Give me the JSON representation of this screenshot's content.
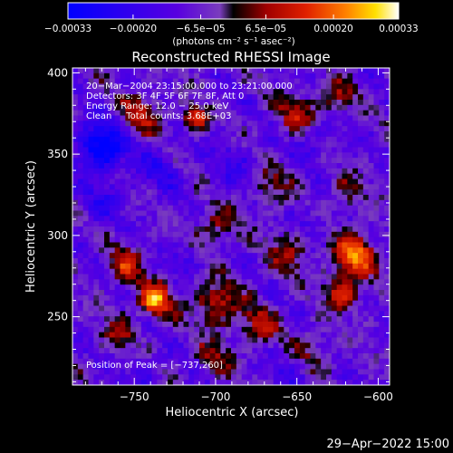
{
  "chart_data": {
    "type": "heatmap",
    "title": "Reconstructed RHESSI Image",
    "xlabel": "Heliocentric X (arcsec)",
    "ylabel": "Heliocentric Y (arcsec)",
    "xlim": [
      -788,
      -593
    ],
    "ylim": [
      208,
      403
    ],
    "xticks": [
      -750,
      -700,
      -650,
      -600
    ],
    "xtick_labels": [
      "−750",
      "−700",
      "−650",
      "−600"
    ],
    "yticks": [
      250,
      300,
      350,
      400
    ],
    "ytick_labels": [
      "250",
      "300",
      "350",
      "400"
    ],
    "colorbar": {
      "range": [
        -0.00033,
        0.00033
      ],
      "ticks": [
        -0.00033,
        -0.0002,
        -6.5e-05,
        6.5e-05,
        0.0002,
        0.00033
      ],
      "tick_labels": [
        "−0.00033",
        "−0.00020",
        "−6.5e−05",
        "6.5e−05",
        "0.00020",
        "0.00033"
      ],
      "unit_label": "(photons cm⁻² s⁻¹ asec⁻²)"
    },
    "annotations": [
      "20−Mar−2004 23:15:00.000 to 23:21:00.000",
      "Detectors: 3F 4F 5F 6F 7F 8F, Att 0",
      "Energy Range: 12.0 − 25.0 keV",
      "Clean     Total counts: 3.68E+03",
      "Position of Peak = [−737,260]"
    ],
    "peak": [
      -737,
      260
    ],
    "sources": [
      {
        "x": -737,
        "y": 260,
        "peak": 0.00033,
        "sigma": 7
      },
      {
        "x": -712,
        "y": 372,
        "peak": 0.00028,
        "sigma": 5
      },
      {
        "x": -615,
        "y": 288,
        "peak": 0.0003,
        "sigma": 9
      },
      {
        "x": -622,
        "y": 265,
        "peak": 0.00024,
        "sigma": 7
      },
      {
        "x": -700,
        "y": 258,
        "peak": 0.00019,
        "sigma": 10
      },
      {
        "x": -673,
        "y": 245,
        "peak": 0.00017,
        "sigma": 8
      },
      {
        "x": -755,
        "y": 282,
        "peak": 0.00018,
        "sigma": 8
      },
      {
        "x": -760,
        "y": 240,
        "peak": 0.00015,
        "sigma": 7
      },
      {
        "x": -655,
        "y": 290,
        "peak": 0.00014,
        "sigma": 9
      },
      {
        "x": -700,
        "y": 305,
        "peak": 0.00014,
        "sigma": 8
      },
      {
        "x": -745,
        "y": 375,
        "peak": 0.00016,
        "sigma": 9
      },
      {
        "x": -650,
        "y": 375,
        "peak": 0.00017,
        "sigma": 8
      },
      {
        "x": -625,
        "y": 385,
        "peak": 0.00015,
        "sigma": 7
      },
      {
        "x": -665,
        "y": 330,
        "peak": 0.00012,
        "sigma": 8
      },
      {
        "x": -620,
        "y": 325,
        "peak": 0.00011,
        "sigma": 8
      },
      {
        "x": -700,
        "y": 225,
        "peak": 0.00012,
        "sigma": 8
      },
      {
        "x": -640,
        "y": 230,
        "peak": 0.0001,
        "sigma": 8
      },
      {
        "x": -770,
        "y": 355,
        "peak": -0.0003,
        "sigma": 10
      },
      {
        "x": -770,
        "y": 320,
        "peak": -0.0001,
        "sigma": 9
      },
      {
        "x": -735,
        "y": 340,
        "peak": -0.0001,
        "sigma": 10
      },
      {
        "x": -690,
        "y": 345,
        "peak": -8e-05,
        "sigma": 9
      },
      {
        "x": -640,
        "y": 355,
        "peak": -8e-05,
        "sigma": 8
      },
      {
        "x": -720,
        "y": 285,
        "peak": -8e-05,
        "sigma": 7
      },
      {
        "x": -640,
        "y": 310,
        "peak": -8e-05,
        "sigma": 8
      },
      {
        "x": -745,
        "y": 215,
        "peak": -6e-05,
        "sigma": 9
      },
      {
        "x": -655,
        "y": 215,
        "peak": -6e-05,
        "sigma": 8
      }
    ]
  },
  "footer": {
    "timestamp": "29−Apr−2022 15:00"
  }
}
